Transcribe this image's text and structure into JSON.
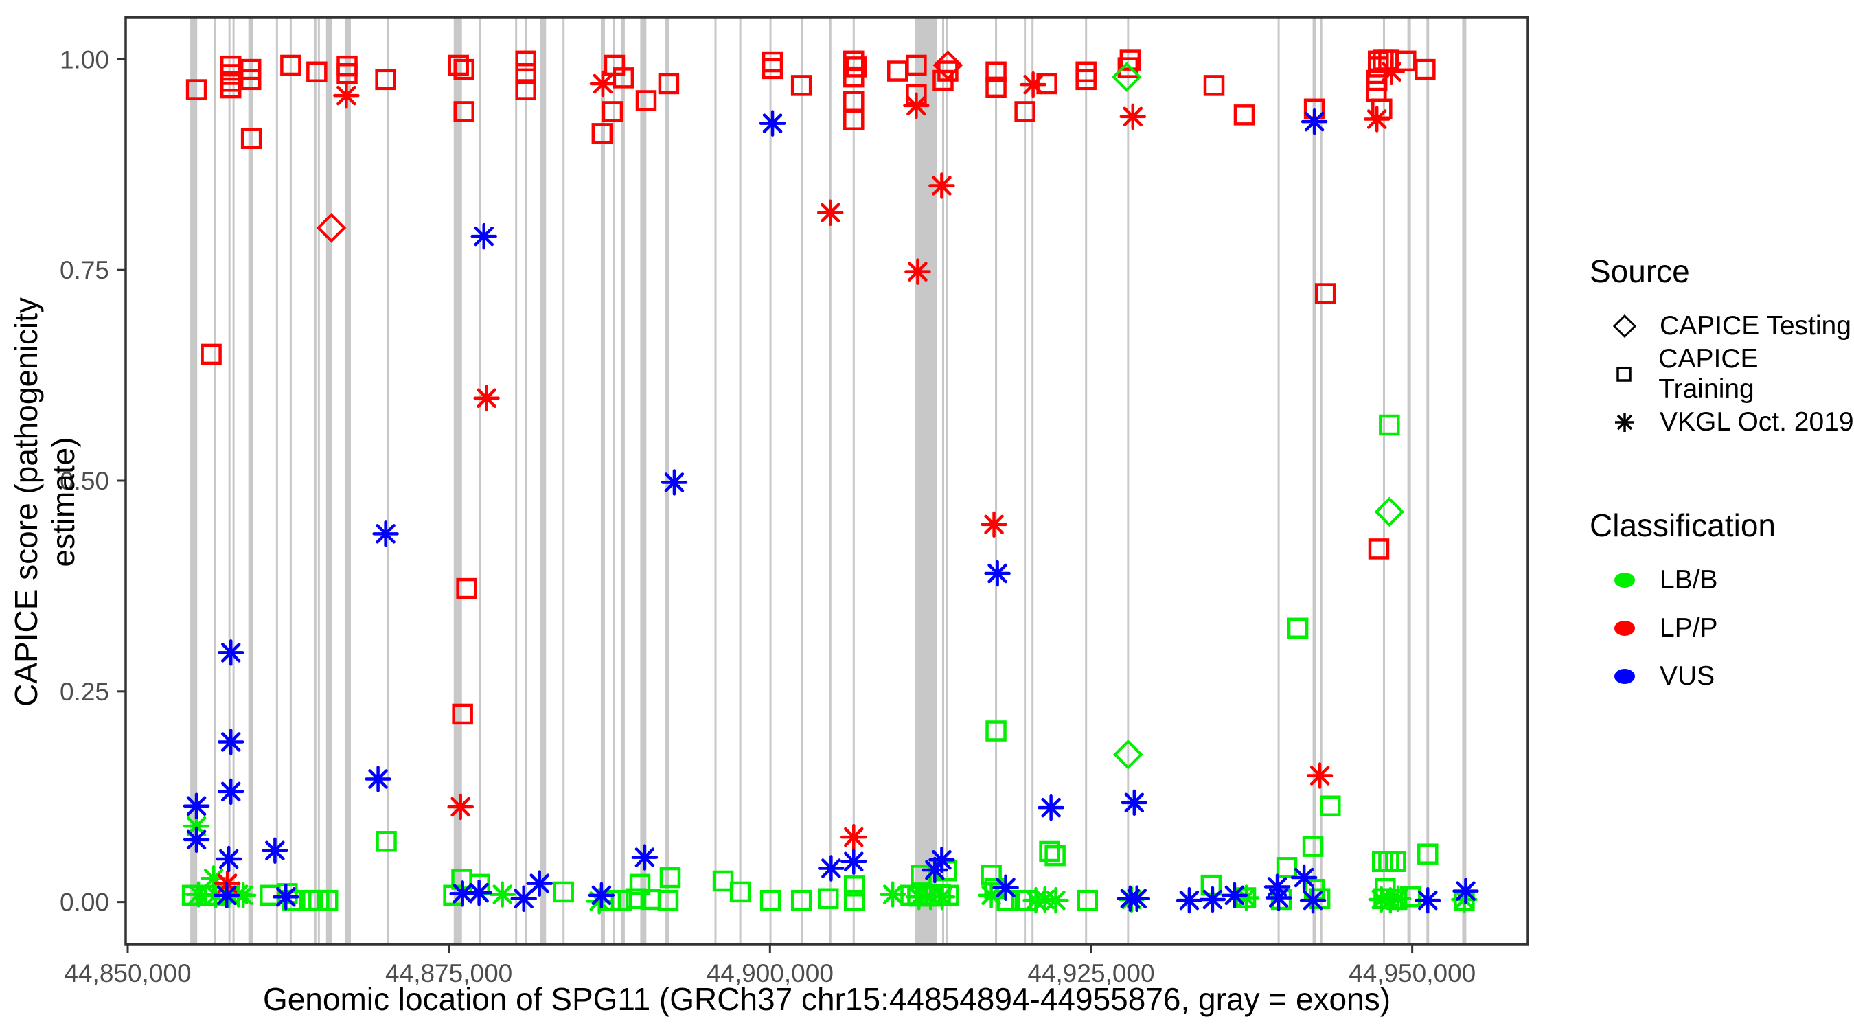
{
  "figure_title": "",
  "legend": {
    "source_title": "Source",
    "source_items": [
      {
        "label": "CAPICE Testing",
        "shape": "diamond"
      },
      {
        "label": "CAPICE Training",
        "shape": "square"
      },
      {
        "label": "VKGL Oct. 2019",
        "shape": "asterisk"
      }
    ],
    "classification_title": "Classification",
    "classification_items": [
      {
        "label": "LB/B",
        "color": "#00ee00"
      },
      {
        "label": "LP/P",
        "color": "#ff0000"
      },
      {
        "label": "VUS",
        "color": "#0000ff"
      }
    ]
  },
  "chart_data": {
    "type": "scatter",
    "title": "",
    "xlabel": "Genomic location of SPG11 (GRCh37 chr15:44854894-44955876, gray = exons)",
    "ylabel": "CAPICE score (pathogenicity estimate)",
    "x_range": [
      44849840,
      44959000
    ],
    "y_range": [
      -0.05,
      1.05
    ],
    "x_ticks": {
      "values": [
        44850000,
        44875000,
        44900000,
        44925000,
        44950000
      ],
      "labels": [
        "44,850,000",
        "44,875,000",
        "44,900,000",
        "44,925,000",
        "44,950,000"
      ]
    },
    "y_ticks": {
      "values": [
        0,
        0.25,
        0.5,
        0.75,
        1
      ],
      "labels": [
        "0.00",
        "0.25",
        "0.50",
        "0.75",
        "1.00"
      ]
    },
    "grid": false,
    "legend_position": "right",
    "exon_color": "#c8c8c8",
    "tick_label_color": "#4d4d4d",
    "exons": [
      [
        44855140,
        540
      ],
      [
        44856800,
        160
      ],
      [
        44857920,
        160
      ],
      [
        44858240,
        160
      ],
      [
        44859580,
        380
      ],
      [
        44861620,
        160
      ],
      [
        44862690,
        160
      ],
      [
        44864610,
        160
      ],
      [
        44864880,
        160
      ],
      [
        44865680,
        480
      ],
      [
        44867130,
        480
      ],
      [
        44870240,
        160
      ],
      [
        44875700,
        640
      ],
      [
        44877410,
        160
      ],
      [
        44880240,
        160
      ],
      [
        44880990,
        160
      ],
      [
        44882330,
        480
      ],
      [
        44883930,
        160
      ],
      [
        44886990,
        320
      ],
      [
        44887840,
        160
      ],
      [
        44888540,
        320
      ],
      [
        44890140,
        480
      ],
      [
        44892020,
        320
      ],
      [
        44895760,
        160
      ],
      [
        44897690,
        160
      ],
      [
        44900040,
        160
      ],
      [
        44902500,
        160
      ],
      [
        44904700,
        160
      ],
      [
        44906520,
        160
      ],
      [
        44912140,
        1710
      ],
      [
        44913480,
        110
      ],
      [
        44913800,
        110
      ],
      [
        44917600,
        160
      ],
      [
        44919850,
        110
      ],
      [
        44920440,
        110
      ],
      [
        44924610,
        160
      ],
      [
        44927880,
        110
      ],
      [
        44939600,
        160
      ],
      [
        44942380,
        270
      ],
      [
        44942920,
        110
      ],
      [
        44947800,
        160
      ],
      [
        44949760,
        270
      ],
      [
        44951210,
        210
      ],
      [
        44954050,
        320
      ]
    ],
    "series": [
      {
        "name": "LB/B CAPICE Training",
        "classification": "LB/B",
        "source": "CAPICE Training",
        "color": "#00ee00",
        "shape": "square",
        "points": [
          [
            44870130,
            0.072
          ],
          [
            44948220,
            0.566
          ],
          [
            44941100,
            0.325
          ],
          [
            44917600,
            0.203
          ],
          [
            44943620,
            0.114
          ],
          [
            44942270,
            0.066
          ],
          [
            44940240,
            0.041
          ],
          [
            44951210,
            0.057
          ],
          [
            44947680,
            0.048
          ],
          [
            44948170,
            0.048
          ],
          [
            44948700,
            0.048
          ],
          [
            44921770,
            0.06
          ],
          [
            44922200,
            0.055
          ],
          [
            44896350,
            0.025
          ],
          [
            44897690,
            0.012
          ],
          [
            44892230,
            0.029
          ],
          [
            44889880,
            0.021
          ],
          [
            44876010,
            0.027
          ],
          [
            44877410,
            0.021
          ],
          [
            44883930,
            0.012
          ],
          [
            44911770,
            0.032
          ],
          [
            44913740,
            0.037
          ],
          [
            44917230,
            0.032
          ],
          [
            44917500,
            0.016
          ],
          [
            44918460,
            0.002
          ],
          [
            44942380,
            0.015
          ],
          [
            44942810,
            0.004
          ],
          [
            44939810,
            0.003
          ],
          [
            44855030,
            0.008
          ],
          [
            44856100,
            0.008
          ],
          [
            44856740,
            0.008
          ],
          [
            44861080,
            0.008
          ],
          [
            44862420,
            0.01
          ],
          [
            44864400,
            0.002
          ],
          [
            44864880,
            0.002
          ],
          [
            44865570,
            0.002
          ],
          [
            44875370,
            0.008
          ],
          [
            44887580,
            0.002
          ],
          [
            44888430,
            0.002
          ],
          [
            44889560,
            0.004
          ],
          [
            44890730,
            0.003
          ],
          [
            44892070,
            0.002
          ],
          [
            44900040,
            0.002
          ],
          [
            44902450,
            0.002
          ],
          [
            44904540,
            0.004
          ],
          [
            44906570,
            0.019
          ],
          [
            44906570,
            0.002
          ],
          [
            44910970,
            0.008
          ],
          [
            44911500,
            0.007
          ],
          [
            44912140,
            0.009
          ],
          [
            44912730,
            0.007
          ],
          [
            44913270,
            0.009
          ],
          [
            44913900,
            0.008
          ],
          [
            44919580,
            0.002
          ],
          [
            44920060,
            0.002
          ],
          [
            44924720,
            0.002
          ],
          [
            44947900,
            0.016
          ],
          [
            44947800,
            0.004
          ],
          [
            44948800,
            0.003
          ],
          [
            44949870,
            0.006
          ],
          [
            44954050,
            0.002
          ],
          [
            44934350,
            0.02
          ],
          [
            44937030,
            0.005
          ],
          [
            44862790,
            0.002
          ]
        ]
      },
      {
        "name": "LB/B VKGL Oct. 2019",
        "classification": "LB/B",
        "source": "VKGL Oct. 2019",
        "color": "#00ee00",
        "shape": "asterisk",
        "points": [
          [
            44855350,
            0.09
          ],
          [
            44856690,
            0.028
          ],
          [
            44855510,
            0.009
          ],
          [
            44856850,
            0.008
          ],
          [
            44857870,
            0.008
          ],
          [
            44858620,
            0.009
          ],
          [
            44858990,
            0.008
          ],
          [
            44879170,
            0.009
          ],
          [
            44886710,
            0.001
          ],
          [
            44909560,
            0.009
          ],
          [
            44911600,
            0.006
          ],
          [
            44912500,
            0.006
          ],
          [
            44913400,
            0.006
          ],
          [
            44917230,
            0.008
          ],
          [
            44920700,
            0.002
          ],
          [
            44921400,
            0.003
          ],
          [
            44922250,
            0.002
          ],
          [
            44928150,
            0.003
          ],
          [
            44937080,
            0.005
          ],
          [
            44947600,
            0.003
          ],
          [
            44948300,
            0.002
          ],
          [
            44948900,
            0.004
          ],
          [
            44954050,
            0.003
          ]
        ]
      },
      {
        "name": "LP/P CAPICE Training",
        "classification": "LP/P",
        "source": "CAPICE Training",
        "color": "#ff0000",
        "shape": "square",
        "points": [
          [
            44855350,
            0.964
          ],
          [
            44858030,
            0.992
          ],
          [
            44858030,
            0.982
          ],
          [
            44858030,
            0.974
          ],
          [
            44858030,
            0.966
          ],
          [
            44859580,
            0.988
          ],
          [
            44859580,
            0.976
          ],
          [
            44859630,
            0.906
          ],
          [
            44856500,
            0.65
          ],
          [
            44862690,
            0.993
          ],
          [
            44864720,
            0.985
          ],
          [
            44867080,
            0.992
          ],
          [
            44867080,
            0.983
          ],
          [
            44870080,
            0.976
          ],
          [
            44875750,
            0.993
          ],
          [
            44876180,
            0.988
          ],
          [
            44876180,
            0.938
          ],
          [
            44876390,
            0.372
          ],
          [
            44876070,
            0.223
          ],
          [
            44880990,
            0.998
          ],
          [
            44880990,
            0.983
          ],
          [
            44880990,
            0.964
          ],
          [
            44887900,
            0.993
          ],
          [
            44888590,
            0.978
          ],
          [
            44887740,
            0.938
          ],
          [
            44886930,
            0.912
          ],
          [
            44890360,
            0.951
          ],
          [
            44892120,
            0.971
          ],
          [
            44900200,
            0.997
          ],
          [
            44900200,
            0.989
          ],
          [
            44902450,
            0.969
          ],
          [
            44906520,
            0.998
          ],
          [
            44906730,
            0.991
          ],
          [
            44906520,
            0.979
          ],
          [
            44906520,
            0.95
          ],
          [
            44906520,
            0.928
          ],
          [
            44909940,
            0.986
          ],
          [
            44911390,
            0.993
          ],
          [
            44911390,
            0.958
          ],
          [
            44913850,
            0.986
          ],
          [
            44913480,
            0.975
          ],
          [
            44917600,
            0.985
          ],
          [
            44917600,
            0.967
          ],
          [
            44919850,
            0.938
          ],
          [
            44921560,
            0.971
          ],
          [
            44924610,
            0.985
          ],
          [
            44924610,
            0.976
          ],
          [
            44928040,
            0.999
          ],
          [
            44927880,
            0.99
          ],
          [
            44934570,
            0.969
          ],
          [
            44936920,
            0.934
          ],
          [
            44942380,
            0.941
          ],
          [
            44943240,
            0.722
          ],
          [
            44947360,
            0.998
          ],
          [
            44947740,
            0.999
          ],
          [
            44948170,
            0.999
          ],
          [
            44947360,
            0.991
          ],
          [
            44947250,
            0.975
          ],
          [
            44947200,
            0.962
          ],
          [
            44947630,
            0.941
          ],
          [
            44949500,
            0.998
          ],
          [
            44951000,
            0.988
          ],
          [
            44947400,
            0.419
          ]
        ]
      },
      {
        "name": "LP/P VKGL Oct. 2019",
        "classification": "LP/P",
        "source": "VKGL Oct. 2019",
        "color": "#ff0000",
        "shape": "asterisk",
        "points": [
          [
            44867020,
            0.957
          ],
          [
            44886990,
            0.971
          ],
          [
            44911390,
            0.945
          ],
          [
            44920490,
            0.97
          ],
          [
            44928250,
            0.932
          ],
          [
            44948390,
            0.985
          ],
          [
            44947250,
            0.929
          ],
          [
            44877940,
            0.598
          ],
          [
            44904700,
            0.818
          ],
          [
            44913370,
            0.85
          ],
          [
            44911500,
            0.748
          ],
          [
            44917440,
            0.448
          ],
          [
            44942810,
            0.15
          ],
          [
            44875910,
            0.113
          ],
          [
            44906520,
            0.077
          ],
          [
            44857760,
            0.022
          ]
        ]
      },
      {
        "name": "VUS VKGL Oct. 2019",
        "classification": "VUS",
        "source": "VKGL Oct. 2019",
        "color": "#0000ff",
        "shape": "asterisk",
        "points": [
          [
            44900200,
            0.924
          ],
          [
            44942380,
            0.926
          ],
          [
            44877730,
            0.79
          ],
          [
            44892550,
            0.498
          ],
          [
            44870080,
            0.437
          ],
          [
            44858030,
            0.296
          ],
          [
            44858030,
            0.19
          ],
          [
            44869490,
            0.146
          ],
          [
            44858030,
            0.131
          ],
          [
            44855350,
            0.114
          ],
          [
            44855350,
            0.074
          ],
          [
            44857870,
            0.051
          ],
          [
            44861460,
            0.061
          ],
          [
            44917710,
            0.39
          ],
          [
            44921880,
            0.112
          ],
          [
            44928360,
            0.118
          ],
          [
            44906520,
            0.048
          ],
          [
            44904760,
            0.04
          ],
          [
            44913370,
            0.05
          ],
          [
            44912830,
            0.038
          ],
          [
            44890250,
            0.053
          ],
          [
            44882060,
            0.022
          ],
          [
            44886880,
            0.008
          ],
          [
            44918350,
            0.017
          ],
          [
            44939490,
            0.018
          ],
          [
            44941580,
            0.029
          ],
          [
            44954160,
            0.013
          ],
          [
            44857710,
            0.008
          ],
          [
            44862310,
            0.006
          ],
          [
            44876070,
            0.01
          ],
          [
            44877350,
            0.011
          ],
          [
            44880830,
            0.004
          ],
          [
            44928040,
            0.004
          ],
          [
            44928570,
            0.004
          ],
          [
            44932640,
            0.002
          ],
          [
            44934460,
            0.003
          ],
          [
            44936170,
            0.008
          ],
          [
            44939600,
            0.005
          ],
          [
            44942270,
            0.002
          ],
          [
            44951210,
            0.002
          ]
        ]
      },
      {
        "name": "LP/P CAPICE Testing",
        "classification": "LP/P",
        "source": "CAPICE Testing",
        "color": "#ff0000",
        "shape": "diamond",
        "points": [
          [
            44865850,
            0.8
          ],
          [
            44913850,
            0.993
          ]
        ]
      },
      {
        "name": "LB/B CAPICE Testing",
        "classification": "LB/B",
        "source": "CAPICE Testing",
        "color": "#00ee00",
        "shape": "diamond",
        "points": [
          [
            44927880,
            0.175
          ],
          [
            44948220,
            0.463
          ],
          [
            44927770,
            0.979
          ]
        ]
      }
    ]
  }
}
